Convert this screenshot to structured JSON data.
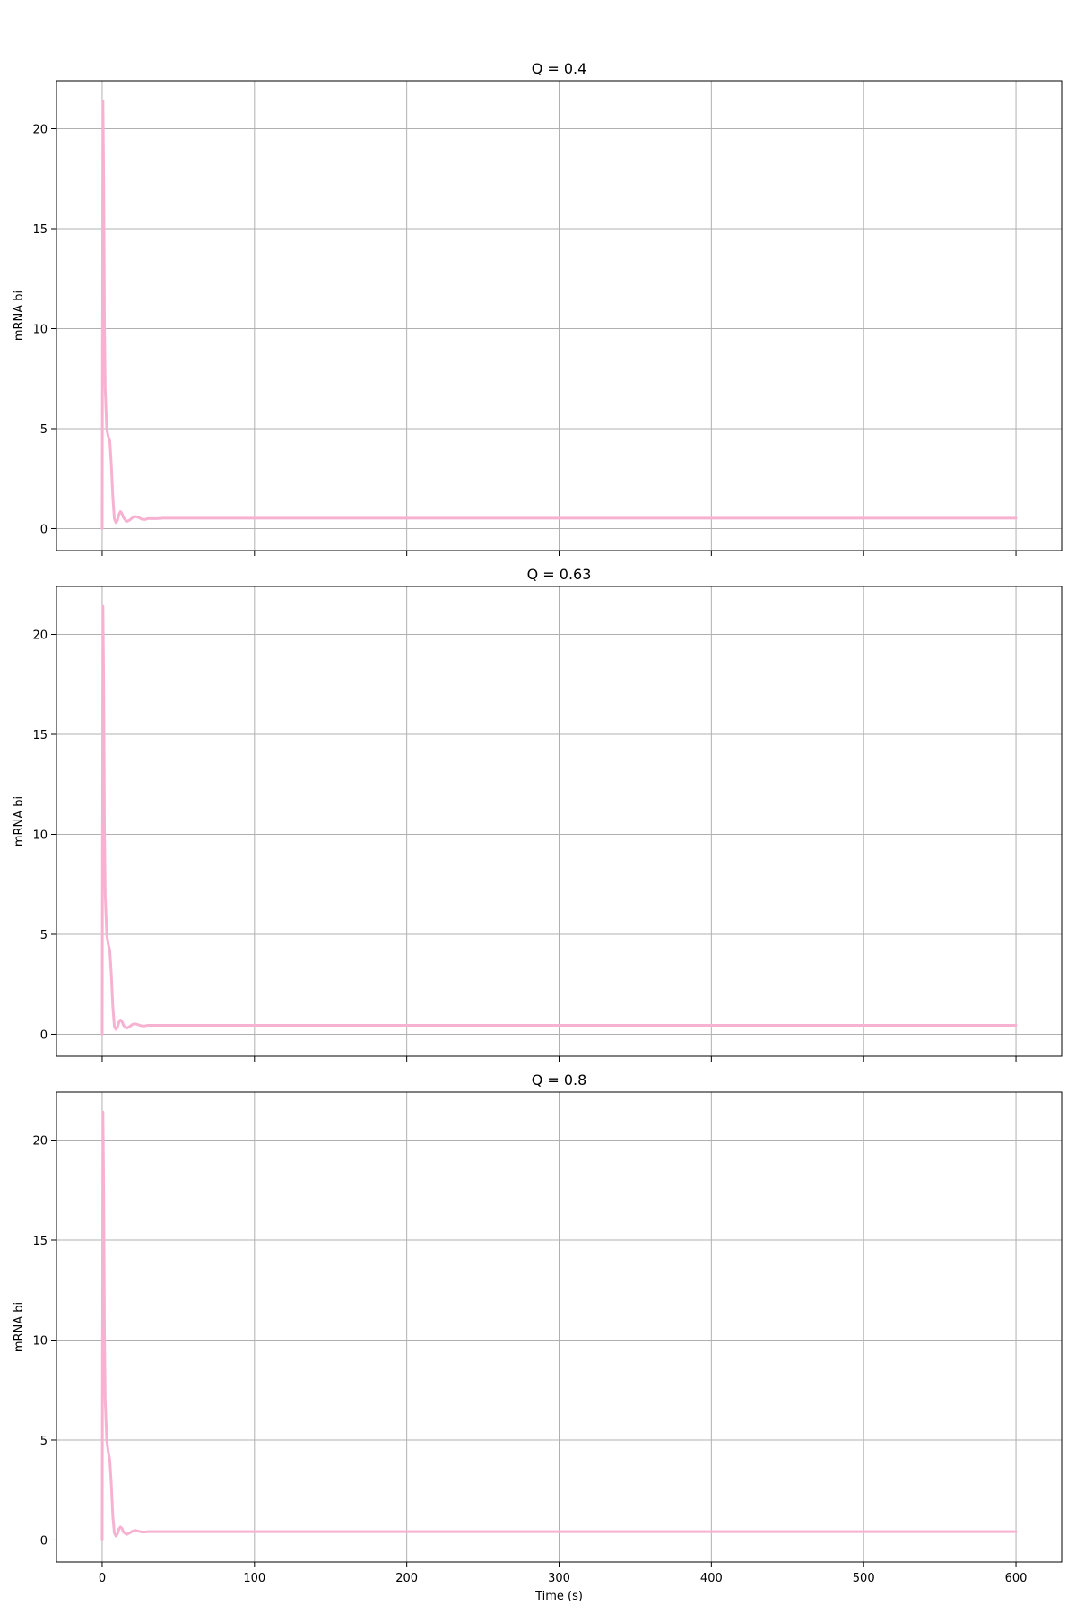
{
  "figure": {
    "line_color": "#f7b2d2",
    "grid_color": "#b0b0b0",
    "axis_color": "#000000"
  },
  "chart_data": [
    {
      "type": "line",
      "title": "Q = 0.4",
      "xlabel": "",
      "ylabel": "mRNA bi",
      "xlim": [
        -30,
        630
      ],
      "ylim": [
        -1.1,
        22.4
      ],
      "xticks": [
        0,
        100,
        200,
        300,
        400,
        500,
        600
      ],
      "xtick_labels": [
        "",
        "",
        "",
        "",
        "",
        "",
        ""
      ],
      "yticks": [
        0,
        5,
        10,
        15,
        20
      ],
      "ytick_labels": [
        "0",
        "5",
        "10",
        "15",
        "20"
      ],
      "grid": true,
      "series": [
        {
          "x": [
            0,
            0.5,
            1,
            1.5,
            2,
            3,
            4,
            5,
            6,
            7,
            8,
            9,
            10,
            11,
            12,
            13,
            14,
            16,
            18,
            20,
            22,
            24,
            26,
            28,
            30,
            33,
            36,
            40,
            45,
            50,
            60,
            100,
            200,
            300,
            400,
            500,
            600
          ],
          "y": [
            0.0,
            21.4,
            17.5,
            10.5,
            7.0,
            5.0,
            4.6,
            4.4,
            3.2,
            1.6,
            0.5,
            0.3,
            0.4,
            0.7,
            0.85,
            0.75,
            0.55,
            0.35,
            0.42,
            0.55,
            0.6,
            0.55,
            0.47,
            0.45,
            0.5,
            0.5,
            0.5,
            0.52,
            0.52,
            0.52,
            0.52,
            0.52,
            0.52,
            0.52,
            0.52,
            0.52,
            0.52
          ]
        }
      ]
    },
    {
      "type": "line",
      "title": "Q = 0.63",
      "xlabel": "",
      "ylabel": "mRNA bi",
      "xlim": [
        -30,
        630
      ],
      "ylim": [
        -1.1,
        22.4
      ],
      "xticks": [
        0,
        100,
        200,
        300,
        400,
        500,
        600
      ],
      "xtick_labels": [
        "",
        "",
        "",
        "",
        "",
        "",
        ""
      ],
      "yticks": [
        0,
        5,
        10,
        15,
        20
      ],
      "ytick_labels": [
        "0",
        "5",
        "10",
        "15",
        "20"
      ],
      "grid": true,
      "series": [
        {
          "x": [
            0,
            0.5,
            1,
            1.5,
            2,
            3,
            4,
            5,
            6,
            7,
            8,
            9,
            10,
            11,
            12,
            13,
            14,
            16,
            18,
            20,
            22,
            24,
            26,
            28,
            30,
            33,
            36,
            40,
            45,
            50,
            60,
            100,
            200,
            300,
            400,
            500,
            600
          ],
          "y": [
            0.0,
            21.4,
            17.5,
            10.5,
            7.0,
            5.0,
            4.5,
            4.2,
            3.0,
            1.4,
            0.4,
            0.25,
            0.35,
            0.6,
            0.72,
            0.65,
            0.45,
            0.3,
            0.38,
            0.5,
            0.52,
            0.47,
            0.42,
            0.42,
            0.45,
            0.45,
            0.45,
            0.45,
            0.45,
            0.45,
            0.45,
            0.45,
            0.45,
            0.45,
            0.45,
            0.45,
            0.45
          ]
        }
      ]
    },
    {
      "type": "line",
      "title": "Q = 0.8",
      "xlabel": "Time (s)",
      "ylabel": "mRNA bi",
      "xlim": [
        -30,
        630
      ],
      "ylim": [
        -1.1,
        22.4
      ],
      "xticks": [
        0,
        100,
        200,
        300,
        400,
        500,
        600
      ],
      "xtick_labels": [
        "0",
        "100",
        "200",
        "300",
        "400",
        "500",
        "600"
      ],
      "yticks": [
        0,
        5,
        10,
        15,
        20
      ],
      "ytick_labels": [
        "0",
        "5",
        "10",
        "15",
        "20"
      ],
      "grid": true,
      "series": [
        {
          "x": [
            0,
            0.5,
            1,
            1.5,
            2,
            3,
            4,
            5,
            6,
            7,
            8,
            9,
            10,
            11,
            12,
            13,
            14,
            16,
            18,
            20,
            22,
            24,
            26,
            28,
            30,
            33,
            36,
            40,
            45,
            50,
            60,
            100,
            200,
            300,
            400,
            500,
            600
          ],
          "y": [
            0.0,
            21.4,
            17.5,
            10.5,
            7.0,
            5.0,
            4.4,
            4.0,
            2.8,
            1.2,
            0.35,
            0.2,
            0.3,
            0.55,
            0.65,
            0.58,
            0.4,
            0.28,
            0.35,
            0.45,
            0.48,
            0.44,
            0.4,
            0.4,
            0.42,
            0.42,
            0.42,
            0.42,
            0.42,
            0.42,
            0.42,
            0.42,
            0.42,
            0.42,
            0.42,
            0.42,
            0.42
          ]
        }
      ]
    }
  ]
}
